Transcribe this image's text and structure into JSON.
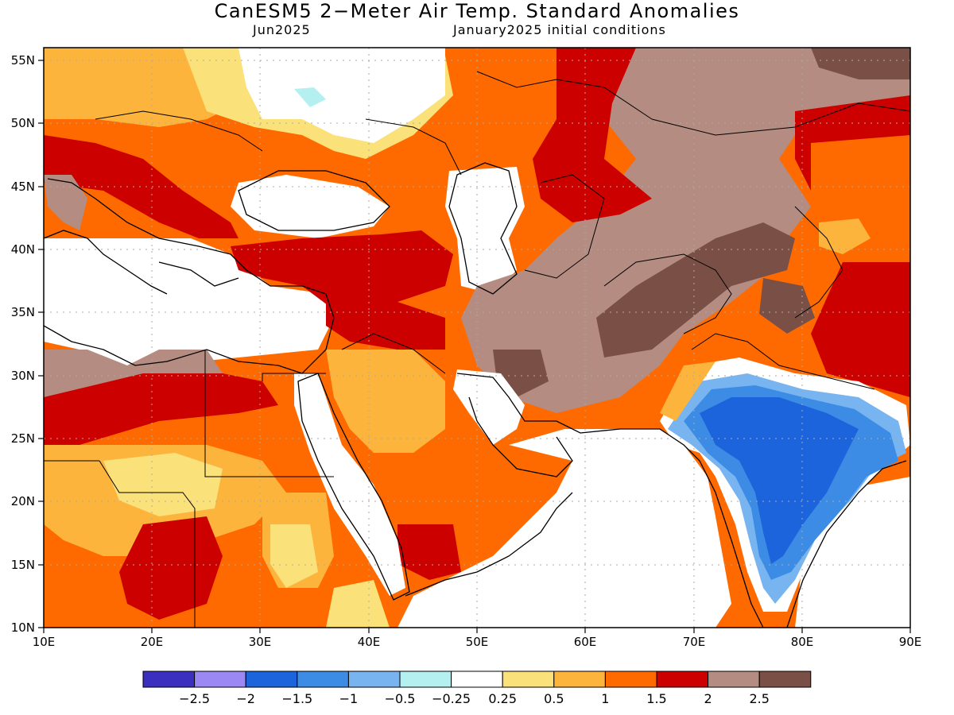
{
  "title": "CanESM5 2−Meter Air Temp. Standard Anomalies",
  "subtitle_left": "Jun2025",
  "subtitle_right": "January2025 initial conditions",
  "map": {
    "lon_range": [
      10,
      90
    ],
    "lat_range": [
      10,
      56
    ],
    "lon_ticks": [
      "10E",
      "20E",
      "30E",
      "40E",
      "50E",
      "60E",
      "70E",
      "80E",
      "90E"
    ],
    "lat_ticks": [
      "10N",
      "15N",
      "20N",
      "25N",
      "30N",
      "35N",
      "40N",
      "45N",
      "50N",
      "55N"
    ],
    "grid": "dotted"
  },
  "colorbar": {
    "colors": [
      "#3a2fbf",
      "#9b88f5",
      "#1c64dc",
      "#3c8ce6",
      "#78b4f0",
      "#b4f0f0",
      "#ffffff",
      "#fae17a",
      "#fdb43c",
      "#ff6a00",
      "#cd0000",
      "#b48c82",
      "#7a5046"
    ],
    "labels": [
      "−2.5",
      "−2",
      "−1.5",
      "−1",
      "−0.5",
      "−0.25",
      "0.25",
      "0.5",
      "1",
      "1.5",
      "2",
      "2.5"
    ]
  }
}
